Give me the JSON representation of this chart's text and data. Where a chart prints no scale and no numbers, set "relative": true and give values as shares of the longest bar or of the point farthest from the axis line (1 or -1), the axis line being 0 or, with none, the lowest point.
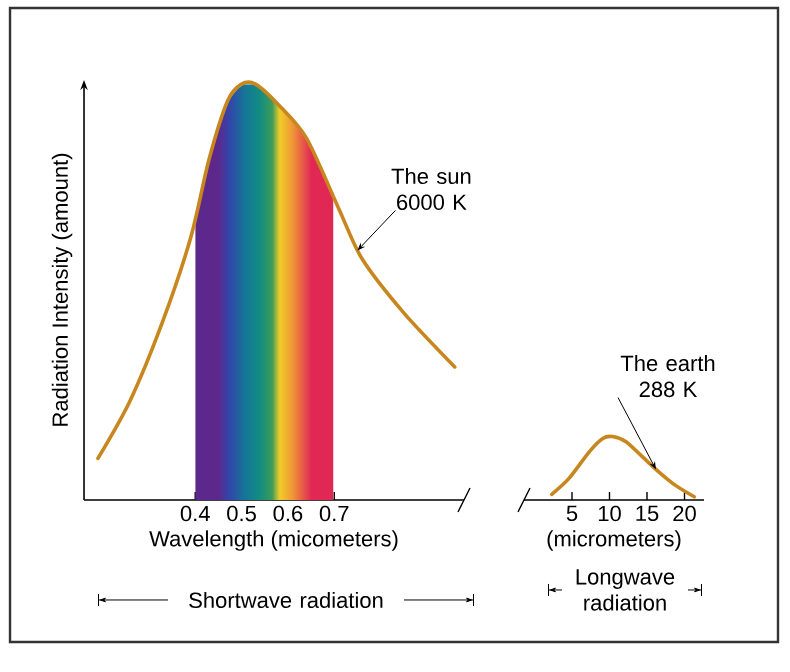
{
  "chart_data": [
    {
      "type": "line",
      "relative": true,
      "xlabel": "Wavelength (micometers)",
      "ylabel": "Radiation Intensity (amount)",
      "xlim": [
        0.16,
        0.98
      ],
      "xticks": [
        0.4,
        0.5,
        0.6,
        0.7
      ],
      "x": [
        0.19,
        0.26,
        0.33,
        0.39,
        0.43,
        0.47,
        0.5,
        0.53,
        0.58,
        0.64,
        0.71,
        0.76,
        0.85,
        0.96
      ],
      "series": [
        {
          "color": "#c8861e",
          "values": [
            0.1,
            0.24,
            0.43,
            0.63,
            0.82,
            0.96,
            1.0,
            1.0,
            0.95,
            0.87,
            0.7,
            0.58,
            0.45,
            0.32
          ]
        }
      ],
      "bands": [
        {
          "axis": "x",
          "from": 0.4,
          "to": 0.7
        }
      ],
      "annotations": [
        {
          "text": "The sun 6000 K",
          "x": 0.75,
          "y": 0.6
        },
        "Shortwave radiation"
      ]
    },
    {
      "type": "line",
      "relative": true,
      "xlabel": "(micrometers)",
      "xlim": [
        -1.4,
        22.6
      ],
      "xticks": [
        5,
        10,
        15,
        20
      ],
      "x": [
        2.3,
        4.6,
        7.3,
        9.1,
        10.4,
        12.2,
        14.4,
        16.6,
        18.8,
        21.3
      ],
      "series": [
        {
          "color": "#c8861e",
          "values": [
            0.09,
            0.34,
            0.76,
            0.97,
            1.0,
            0.92,
            0.68,
            0.44,
            0.23,
            0.05
          ]
        }
      ],
      "annotations": [
        {
          "text": "The earth 288 K",
          "x": 16.2,
          "y": 0.48
        },
        "Longwave radiation"
      ]
    }
  ]
}
